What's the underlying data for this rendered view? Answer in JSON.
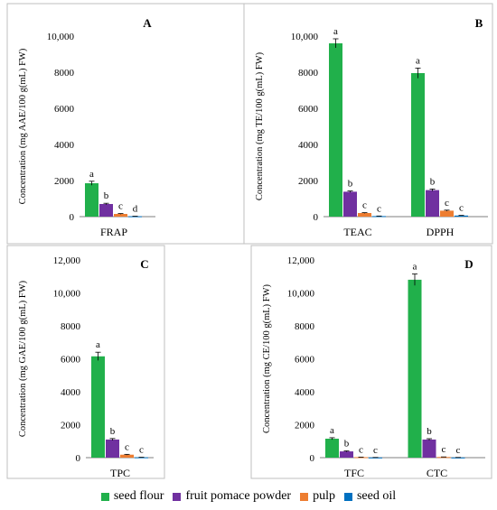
{
  "colors": {
    "seed_flour": "#21b04b",
    "fruit_pomace_powder": "#7030a0",
    "pulp": "#ed7d31",
    "seed_oil": "#0070c0"
  },
  "legend": [
    {
      "key": "seed_flour",
      "label": "seed flour"
    },
    {
      "key": "fruit_pomace_powder",
      "label": "fruit pomace powder"
    },
    {
      "key": "pulp",
      "label": "pulp"
    },
    {
      "key": "seed_oil",
      "label": "seed oil"
    }
  ],
  "chart_data": [
    {
      "type": "bar",
      "panel": "A",
      "ylabel": "Concentration (mg AAE/100 g(mL) FW)",
      "ylim": [
        0,
        10000
      ],
      "yticks": [
        "0",
        "2000",
        "4000",
        "6000",
        "8000",
        "10,000"
      ],
      "categories": [
        "FRAP"
      ],
      "series": [
        {
          "key": "seed_flour",
          "name": "seed flour",
          "values": [
            1850
          ],
          "errors": [
            110
          ],
          "letters": [
            "a"
          ]
        },
        {
          "key": "fruit_pomace_powder",
          "name": "fruit pomace powder",
          "values": [
            700
          ],
          "errors": [
            40
          ],
          "letters": [
            "b"
          ]
        },
        {
          "key": "pulp",
          "name": "pulp",
          "values": [
            150
          ],
          "errors": [
            20
          ],
          "letters": [
            "c"
          ]
        },
        {
          "key": "seed_oil",
          "name": "seed oil",
          "values": [
            20
          ],
          "errors": [
            5
          ],
          "letters": [
            "d"
          ]
        }
      ]
    },
    {
      "type": "bar",
      "panel": "B",
      "ylabel": "Concentration (mg TE/100 g(mL) FW)",
      "ylim": [
        0,
        10000
      ],
      "yticks": [
        "0",
        "2000",
        "4000",
        "6000",
        "8000",
        "10,000"
      ],
      "categories": [
        "TEAC",
        "DPPH"
      ],
      "series": [
        {
          "key": "seed_flour",
          "name": "seed flour",
          "values": [
            9600,
            7950
          ],
          "errors": [
            250,
            280
          ],
          "letters": [
            "a",
            "a"
          ]
        },
        {
          "key": "fruit_pomace_powder",
          "name": "fruit pomace powder",
          "values": [
            1380,
            1470
          ],
          "errors": [
            40,
            60
          ],
          "letters": [
            "b",
            "b"
          ]
        },
        {
          "key": "pulp",
          "name": "pulp",
          "values": [
            200,
            330
          ],
          "errors": [
            20,
            30
          ],
          "letters": [
            "c",
            "c"
          ]
        },
        {
          "key": "seed_oil",
          "name": "seed oil",
          "values": [
            30,
            60
          ],
          "errors": [
            5,
            10
          ],
          "letters": [
            "c",
            "c"
          ]
        }
      ]
    },
    {
      "type": "bar",
      "panel": "C",
      "ylabel": "Concentration (mg GAE/100 g(mL) FW)",
      "ylim": [
        0,
        12000
      ],
      "yticks": [
        "0",
        "2000",
        "4000",
        "6000",
        "8000",
        "10,000",
        "12,000"
      ],
      "categories": [
        "TPC"
      ],
      "series": [
        {
          "key": "seed_flour",
          "name": "seed flour",
          "values": [
            6150
          ],
          "errors": [
            250
          ],
          "letters": [
            "a"
          ]
        },
        {
          "key": "fruit_pomace_powder",
          "name": "fruit pomace powder",
          "values": [
            1100
          ],
          "errors": [
            60
          ],
          "letters": [
            "b"
          ]
        },
        {
          "key": "pulp",
          "name": "pulp",
          "values": [
            180
          ],
          "errors": [
            20
          ],
          "letters": [
            "c"
          ]
        },
        {
          "key": "seed_oil",
          "name": "seed oil",
          "values": [
            20
          ],
          "errors": [
            5
          ],
          "letters": [
            "c"
          ]
        }
      ]
    },
    {
      "type": "bar",
      "panel": "D",
      "ylabel": "Concentration (mg CE/100 g(mL) FW)",
      "ylim": [
        0,
        12000
      ],
      "yticks": [
        "0",
        "2000",
        "4000",
        "6000",
        "8000",
        "10,000",
        "12,000"
      ],
      "categories": [
        "TFC",
        "CTC"
      ],
      "series": [
        {
          "key": "seed_flour",
          "name": "seed flour",
          "values": [
            1150,
            10800
          ],
          "errors": [
            60,
            350
          ],
          "letters": [
            "a",
            "a"
          ]
        },
        {
          "key": "fruit_pomace_powder",
          "name": "fruit pomace powder",
          "values": [
            380,
            1100
          ],
          "errors": [
            30,
            50
          ],
          "letters": [
            "b",
            "b"
          ]
        },
        {
          "key": "pulp",
          "name": "pulp",
          "values": [
            30,
            40
          ],
          "errors": [
            5,
            5
          ],
          "letters": [
            "c",
            "c"
          ]
        },
        {
          "key": "seed_oil",
          "name": "seed oil",
          "values": [
            10,
            10
          ],
          "errors": [
            3,
            3
          ],
          "letters": [
            "c",
            "c"
          ]
        }
      ]
    }
  ]
}
